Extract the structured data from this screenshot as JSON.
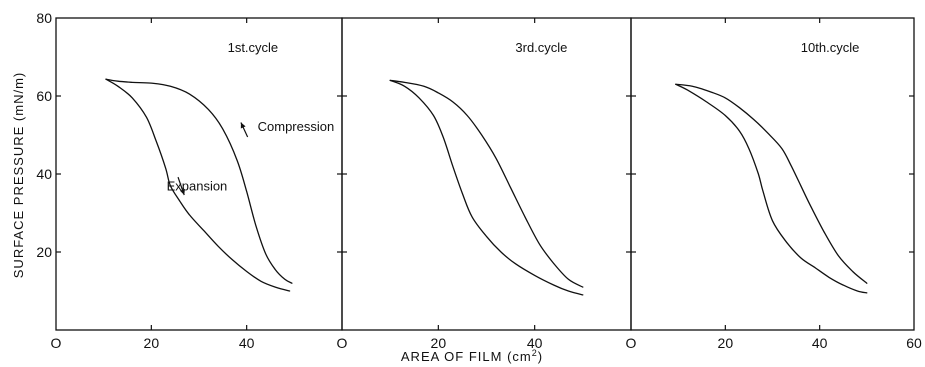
{
  "chart_data": {
    "type": "line",
    "ylabel": "SURFACE PRESSURE (mN/m)",
    "xlabel_prefix": "AREA OF FILM (cm",
    "xlabel_sup": "2",
    "xlabel_suffix": ")",
    "ylim": [
      0,
      80
    ],
    "yticks": [
      0,
      20,
      40,
      60,
      80
    ],
    "ytick_labels": [
      "20",
      "40",
      "60",
      "80"
    ],
    "grid": false,
    "legend": "none",
    "line_color": "#111111",
    "panels": [
      {
        "label": "1st.cycle",
        "xlim": [
          0,
          60
        ],
        "xticks": [
          0,
          20,
          40
        ],
        "xtick_labels": [
          "O",
          "20",
          "40"
        ],
        "annotations": [
          {
            "text": "Compression",
            "x": 42.3,
            "y": 52,
            "arrow_from": [
              40.2,
              49.5
            ],
            "arrow_to": [
              38.8,
              53.2
            ]
          },
          {
            "text": "Expansion",
            "x": 23.2,
            "y": 36.8,
            "arrow_from": [
              25.6,
              39.2
            ],
            "arrow_to": [
              26.9,
              34.6
            ]
          }
        ],
        "series": [
          {
            "x": [
              10.5,
              13,
              16,
              20,
              24,
              28,
              32,
              35,
              38,
              40,
              42,
              44,
              46,
              48,
              49.5
            ],
            "y": [
              64.3,
              63.8,
              63.5,
              63.3,
              62.5,
              60.5,
              56.5,
              51.5,
              43.5,
              35.5,
              26.5,
              19.5,
              15.5,
              13,
              12
            ]
          },
          {
            "x": [
              10.5,
              13,
              16,
              19,
              21,
              23,
              24,
              26,
              28,
              31,
              34,
              37,
              40,
              43,
              46,
              49
            ],
            "y": [
              64.3,
              62.5,
              59.5,
              54.5,
              48.5,
              41.5,
              37,
              33,
              29.5,
              25.5,
              21.5,
              18,
              15,
              12.5,
              11,
              10
            ]
          }
        ]
      },
      {
        "label": "3rd.cycle",
        "xlim": [
          0,
          60
        ],
        "xticks": [
          0,
          20,
          40
        ],
        "xtick_labels": [
          "O",
          "20",
          "40"
        ],
        "annotations": [],
        "series": [
          {
            "x": [
              10,
              13,
              17,
              20,
              23,
              26,
              29,
              32,
              35,
              38,
              41,
              44,
              47,
              50
            ],
            "y": [
              64,
              63.5,
              62.5,
              60.8,
              58.5,
              55,
              50,
              44,
              36.5,
              29,
              22,
              17,
              13,
              11
            ]
          },
          {
            "x": [
              10,
              13,
              16,
              19,
              21,
              23,
              25,
              27,
              30,
              33,
              36,
              40,
              44,
              47,
              50
            ],
            "y": [
              64,
              62.5,
              59.5,
              55,
              49.5,
              42,
              35,
              29,
              24,
              20,
              17,
              14,
              11.5,
              10,
              9
            ]
          }
        ]
      },
      {
        "label": "10th.cycle",
        "xlim": [
          0,
          60
        ],
        "xticks": [
          0,
          20,
          40,
          60
        ],
        "xtick_labels": [
          "O",
          "20",
          "40",
          "60"
        ],
        "annotations": [],
        "series": [
          {
            "x": [
              9.5,
              13,
              17,
              20,
              23,
              26,
              29,
              32,
              34,
              36,
              38,
              41,
              44,
              47,
              50
            ],
            "y": [
              63,
              62.5,
              61,
              59.5,
              57,
              54,
              50.5,
              46.5,
              42,
              37,
              32,
              25,
              19,
              15,
              12
            ]
          },
          {
            "x": [
              9.5,
              12,
              16,
              20,
              23,
              25,
              27,
              28,
              30,
              33,
              36,
              39,
              42,
              45,
              48,
              50
            ],
            "y": [
              63,
              61.5,
              58.5,
              55,
              51,
              46.5,
              40,
              35.5,
              28,
              22.5,
              18.5,
              16,
              13.5,
              11.5,
              10,
              9.5
            ]
          }
        ]
      }
    ]
  }
}
